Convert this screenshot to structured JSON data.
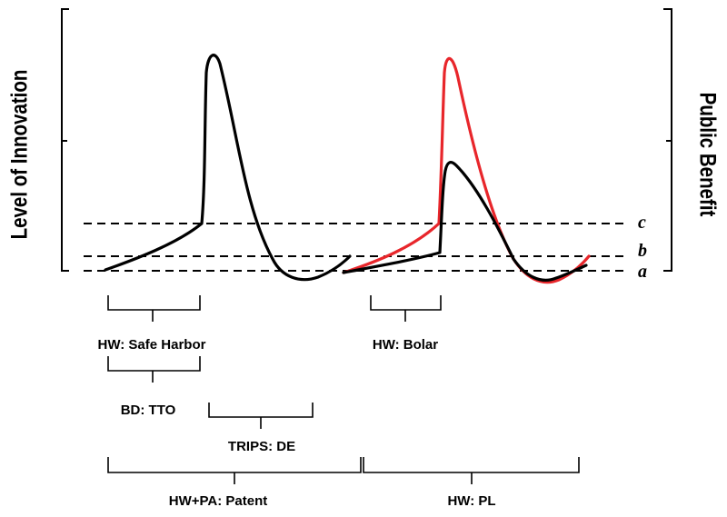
{
  "axes": {
    "left_label": "Level of Innovation",
    "right_label": "Public Benefit"
  },
  "levels": {
    "a": "a",
    "b": "b",
    "c": "c"
  },
  "brackets": {
    "safe_harbor": "HW: Safe Harbor",
    "bolar": "HW: Bolar",
    "tto": "BD: TTO",
    "trips_de": "TRIPS: DE",
    "patent": "HW+PA: Patent",
    "pl": "HW: PL"
  },
  "colors": {
    "primary_curve": "#000000",
    "alternate_curve": "#e8262b"
  }
}
